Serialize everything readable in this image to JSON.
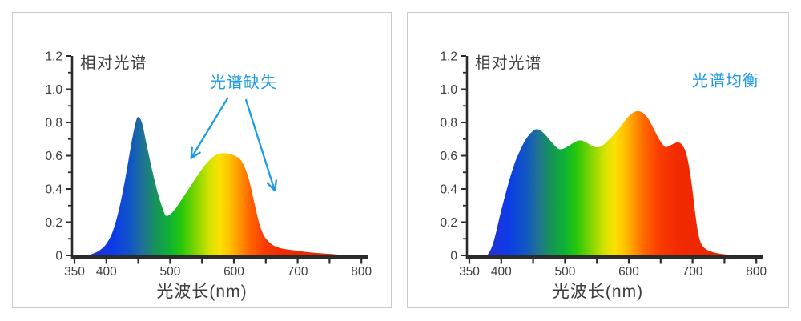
{
  "page": {
    "background": "#ffffff",
    "panel_border_color": "#c9c9c9",
    "axis_color": "#2b2b2b",
    "text_color": "#3d3d3d",
    "annotation_color": "#1e9be8"
  },
  "spectrum_gradient": [
    {
      "wavelength": 350,
      "color": "#2929b8"
    },
    {
      "wavelength": 385,
      "color": "#2032d8"
    },
    {
      "wavelength": 412,
      "color": "#0c3ce8"
    },
    {
      "wavelength": 438,
      "color": "#1156c4"
    },
    {
      "wavelength": 458,
      "color": "#1f7394"
    },
    {
      "wavelength": 478,
      "color": "#169458"
    },
    {
      "wavelength": 498,
      "color": "#0cb136"
    },
    {
      "wavelength": 518,
      "color": "#27c70a"
    },
    {
      "wavelength": 542,
      "color": "#86d600"
    },
    {
      "wavelength": 562,
      "color": "#d4e200"
    },
    {
      "wavelength": 578,
      "color": "#fce000"
    },
    {
      "wavelength": 593,
      "color": "#ffc300"
    },
    {
      "wavelength": 608,
      "color": "#ff9800"
    },
    {
      "wavelength": 625,
      "color": "#ff6400"
    },
    {
      "wavelength": 648,
      "color": "#fa3c00"
    },
    {
      "wavelength": 675,
      "color": "#f22a00"
    },
    {
      "wavelength": 800,
      "color": "#e62300"
    }
  ],
  "chart_data": [
    {
      "type": "area",
      "title": "相对光谱",
      "xlabel": "光波长(nm)",
      "ylabel": "",
      "annotation_label": "光谱缺失",
      "annotation_color": "#1e9be8",
      "annotation_arrows": [
        {
          "from": [
            590,
            0.945
          ],
          "to": [
            533,
            0.585
          ]
        },
        {
          "from": [
            619,
            0.935
          ],
          "to": [
            664,
            0.39
          ]
        }
      ],
      "xlim": [
        350,
        800
      ],
      "ylim": [
        0,
        1.2
      ],
      "x_ticks_labeled": [
        350,
        400,
        500,
        600,
        700,
        800
      ],
      "x_ticks_minor": [
        450,
        550,
        650,
        750
      ],
      "y_ticks_labeled": [
        "0",
        "0.2",
        "0.4",
        "0.6",
        "0.8",
        "1.0",
        "1.2"
      ],
      "y_ticks_minor": [
        0.1,
        0.3,
        0.5,
        0.7,
        0.9,
        1.1
      ],
      "grid": false,
      "legend": "none",
      "fill": "spectrum-gradient",
      "series": [
        {
          "name": "相对光谱",
          "points": [
            [
              370,
              0
            ],
            [
              380,
              0.012
            ],
            [
              390,
              0.032
            ],
            [
              400,
              0.07
            ],
            [
              410,
              0.145
            ],
            [
              420,
              0.28
            ],
            [
              430,
              0.47
            ],
            [
              440,
              0.69
            ],
            [
              447,
              0.815
            ],
            [
              451,
              0.83
            ],
            [
              456,
              0.795
            ],
            [
              463,
              0.67
            ],
            [
              472,
              0.51
            ],
            [
              481,
              0.37
            ],
            [
              488,
              0.285
            ],
            [
              493,
              0.24
            ],
            [
              499,
              0.245
            ],
            [
              507,
              0.275
            ],
            [
              517,
              0.33
            ],
            [
              529,
              0.4
            ],
            [
              542,
              0.475
            ],
            [
              554,
              0.54
            ],
            [
              565,
              0.585
            ],
            [
              574,
              0.608
            ],
            [
              583,
              0.615
            ],
            [
              592,
              0.612
            ],
            [
              601,
              0.6
            ],
            [
              608,
              0.585
            ],
            [
              614,
              0.555
            ],
            [
              620,
              0.5
            ],
            [
              626,
              0.42
            ],
            [
              633,
              0.3
            ],
            [
              640,
              0.19
            ],
            [
              647,
              0.12
            ],
            [
              654,
              0.085
            ],
            [
              662,
              0.06
            ],
            [
              672,
              0.045
            ],
            [
              685,
              0.035
            ],
            [
              700,
              0.028
            ],
            [
              715,
              0.02
            ],
            [
              732,
              0.014
            ],
            [
              750,
              0.009
            ],
            [
              768,
              0.004
            ],
            [
              788,
              0.001
            ],
            [
              798,
              0
            ]
          ]
        }
      ]
    },
    {
      "type": "area",
      "title": "相对光谱",
      "xlabel": "光波长(nm)",
      "ylabel": "",
      "annotation_label": "光谱均衡",
      "annotation_color": "#1e9be8",
      "annotation_arrows": [],
      "xlim": [
        350,
        800
      ],
      "ylim": [
        0,
        1.2
      ],
      "x_ticks_labeled": [
        350,
        400,
        500,
        600,
        700,
        800
      ],
      "x_ticks_minor": [
        450,
        550,
        650,
        750
      ],
      "y_ticks_labeled": [
        "0",
        "0.2",
        "0.4",
        "0.6",
        "0.8",
        "1.0",
        "1.2"
      ],
      "y_ticks_minor": [
        0.1,
        0.3,
        0.5,
        0.7,
        0.9,
        1.1
      ],
      "grid": false,
      "legend": "none",
      "fill": "spectrum-gradient",
      "series": [
        {
          "name": "相对光谱",
          "points": [
            [
              378,
              0
            ],
            [
              384,
              0.04
            ],
            [
              390,
              0.11
            ],
            [
              398,
              0.24
            ],
            [
              406,
              0.36
            ],
            [
              414,
              0.47
            ],
            [
              422,
              0.565
            ],
            [
              430,
              0.635
            ],
            [
              438,
              0.695
            ],
            [
              446,
              0.735
            ],
            [
              453,
              0.758
            ],
            [
              460,
              0.755
            ],
            [
              468,
              0.73
            ],
            [
              476,
              0.695
            ],
            [
              484,
              0.66
            ],
            [
              491,
              0.64
            ],
            [
              499,
              0.645
            ],
            [
              508,
              0.665
            ],
            [
              517,
              0.685
            ],
            [
              524,
              0.692
            ],
            [
              532,
              0.682
            ],
            [
              541,
              0.662
            ],
            [
              549,
              0.651
            ],
            [
              557,
              0.658
            ],
            [
              566,
              0.685
            ],
            [
              576,
              0.725
            ],
            [
              587,
              0.775
            ],
            [
              597,
              0.825
            ],
            [
              606,
              0.857
            ],
            [
              614,
              0.868
            ],
            [
              622,
              0.858
            ],
            [
              630,
              0.825
            ],
            [
              638,
              0.77
            ],
            [
              646,
              0.71
            ],
            [
              653,
              0.668
            ],
            [
              658,
              0.652
            ],
            [
              665,
              0.662
            ],
            [
              671,
              0.673
            ],
            [
              677,
              0.68
            ],
            [
              683,
              0.668
            ],
            [
              689,
              0.625
            ],
            [
              694,
              0.545
            ],
            [
              699,
              0.42
            ],
            [
              704,
              0.26
            ],
            [
              709,
              0.13
            ],
            [
              714,
              0.068
            ],
            [
              721,
              0.038
            ],
            [
              730,
              0.022
            ],
            [
              742,
              0.011
            ],
            [
              755,
              0.005
            ],
            [
              770,
              0.001
            ],
            [
              778,
              0
            ]
          ]
        }
      ]
    }
  ]
}
